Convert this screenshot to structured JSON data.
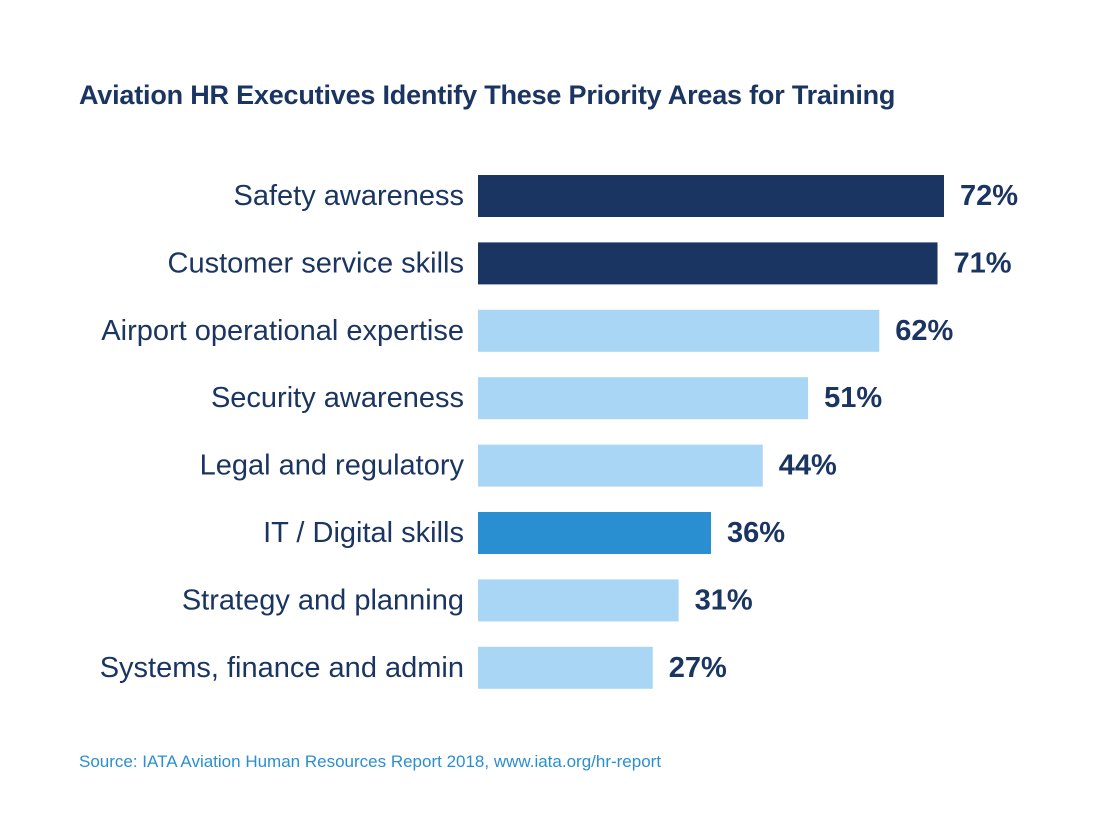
{
  "header": {
    "title": "Aviation HR Executives Identify These Priority Areas for Training"
  },
  "footer": {
    "source": "Source: IATA Aviation Human Resources Report 2018, www.iata.org/hr-report"
  },
  "colors": {
    "title": "#1b3562",
    "label": "#1b3562",
    "bar_dark": "#1b3562",
    "bar_light": "#a9d6f4",
    "bar_medium": "#2a8fd0",
    "source": "#2a8fd0"
  },
  "chart_data": {
    "type": "bar",
    "orientation": "horizontal",
    "title": "Aviation HR Executives Identify These Priority Areas for Training",
    "categories": [
      "Safety awareness",
      "Customer service skills",
      "Airport operational expertise",
      "Security awareness",
      "Legal and regulatory",
      "IT / Digital skills",
      "Strategy and planning",
      "Systems, finance and admin"
    ],
    "values": [
      72,
      71,
      62,
      51,
      44,
      36,
      31,
      27
    ],
    "value_labels": [
      "72%",
      "71%",
      "62%",
      "51%",
      "44%",
      "36%",
      "31%",
      "27%"
    ],
    "bar_colors": [
      "#1b3562",
      "#1b3562",
      "#a9d6f4",
      "#a9d6f4",
      "#a9d6f4",
      "#2a8fd0",
      "#a9d6f4",
      "#a9d6f4"
    ],
    "unit": "%",
    "xlim": [
      0,
      72
    ],
    "grid": false,
    "legend": "none",
    "axes_visible": false
  }
}
